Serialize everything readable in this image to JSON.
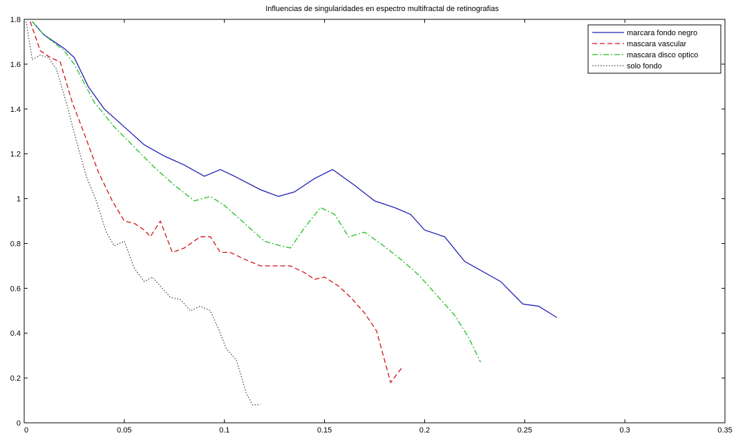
{
  "chart_data": {
    "type": "line",
    "title": "Influencias de singularidades en espectro multifractal de retinografias",
    "xlabel": "",
    "ylabel": "",
    "xlim": [
      0,
      0.35
    ],
    "ylim": [
      0,
      1.8
    ],
    "xticks": [
      0,
      0.05,
      0.1,
      0.15,
      0.2,
      0.25,
      0.3,
      0.35
    ],
    "xtick_labels": [
      "0",
      "0.05",
      "0.1",
      "0.15",
      "0.2",
      "0.25",
      "0.3",
      "0.35"
    ],
    "yticks": [
      0,
      0.2,
      0.4,
      0.6,
      0.8,
      1,
      1.2,
      1.4,
      1.6,
      1.8
    ],
    "ytick_labels": [
      "0",
      "0.2",
      "0.4",
      "0.6",
      "0.8",
      "1",
      "1.2",
      "1.4",
      "1.6",
      "1.8"
    ],
    "grid": false,
    "legend_position": "top-right",
    "series": [
      {
        "name": "marcara fondo negro",
        "color": "#1f1fb4",
        "dash": "solid",
        "x": [
          0.004,
          0.01,
          0.02,
          0.025,
          0.032,
          0.04,
          0.05,
          0.06,
          0.07,
          0.08,
          0.09,
          0.098,
          0.105,
          0.118,
          0.127,
          0.135,
          0.145,
          0.154,
          0.165,
          0.175,
          0.185,
          0.193,
          0.2,
          0.21,
          0.22,
          0.23,
          0.238,
          0.249,
          0.257,
          0.266
        ],
        "y": [
          1.79,
          1.73,
          1.67,
          1.63,
          1.5,
          1.4,
          1.32,
          1.24,
          1.19,
          1.15,
          1.1,
          1.13,
          1.1,
          1.04,
          1.01,
          1.03,
          1.09,
          1.13,
          1.06,
          0.99,
          0.96,
          0.93,
          0.86,
          0.83,
          0.72,
          0.67,
          0.63,
          0.53,
          0.52,
          0.47
        ]
      },
      {
        "name": "mascara vascular",
        "color": "#d01010",
        "dash": "dashed",
        "x": [
          0.003,
          0.008,
          0.013,
          0.018,
          0.024,
          0.03,
          0.037,
          0.044,
          0.05,
          0.055,
          0.06,
          0.063,
          0.068,
          0.074,
          0.08,
          0.088,
          0.093,
          0.098,
          0.103,
          0.11,
          0.118,
          0.125,
          0.133,
          0.14,
          0.145,
          0.15,
          0.157,
          0.163,
          0.17,
          0.176,
          0.183,
          0.189
        ],
        "y": [
          1.79,
          1.66,
          1.63,
          1.61,
          1.43,
          1.29,
          1.12,
          0.99,
          0.9,
          0.89,
          0.86,
          0.83,
          0.9,
          0.76,
          0.78,
          0.83,
          0.83,
          0.76,
          0.76,
          0.73,
          0.7,
          0.7,
          0.7,
          0.67,
          0.64,
          0.65,
          0.61,
          0.56,
          0.49,
          0.41,
          0.18,
          0.25
        ]
      },
      {
        "name": "mascara disco optico",
        "color": "#1fbf1f",
        "dash": "dashdot",
        "x": [
          0.004,
          0.01,
          0.02,
          0.025,
          0.035,
          0.045,
          0.055,
          0.065,
          0.075,
          0.085,
          0.093,
          0.1,
          0.11,
          0.12,
          0.128,
          0.133,
          0.14,
          0.148,
          0.155,
          0.162,
          0.17,
          0.178,
          0.188,
          0.197,
          0.205,
          0.215,
          0.222,
          0.228
        ],
        "y": [
          1.79,
          1.73,
          1.66,
          1.6,
          1.43,
          1.32,
          1.23,
          1.14,
          1.06,
          0.99,
          1.01,
          0.97,
          0.89,
          0.81,
          0.79,
          0.78,
          0.87,
          0.96,
          0.93,
          0.83,
          0.85,
          0.8,
          0.73,
          0.66,
          0.58,
          0.48,
          0.38,
          0.27
        ]
      },
      {
        "name": "solo fondo",
        "color": "#333333",
        "dash": "dotted",
        "x": [
          0.001,
          0.004,
          0.008,
          0.012,
          0.016,
          0.021,
          0.026,
          0.031,
          0.036,
          0.041,
          0.045,
          0.05,
          0.055,
          0.06,
          0.064,
          0.068,
          0.073,
          0.078,
          0.083,
          0.088,
          0.093,
          0.097,
          0.101,
          0.106,
          0.111,
          0.114,
          0.118
        ],
        "y": [
          1.79,
          1.62,
          1.64,
          1.63,
          1.58,
          1.43,
          1.26,
          1.1,
          0.99,
          0.85,
          0.79,
          0.81,
          0.69,
          0.63,
          0.65,
          0.61,
          0.56,
          0.55,
          0.5,
          0.52,
          0.5,
          0.42,
          0.33,
          0.28,
          0.13,
          0.08,
          0.08
        ]
      }
    ]
  }
}
